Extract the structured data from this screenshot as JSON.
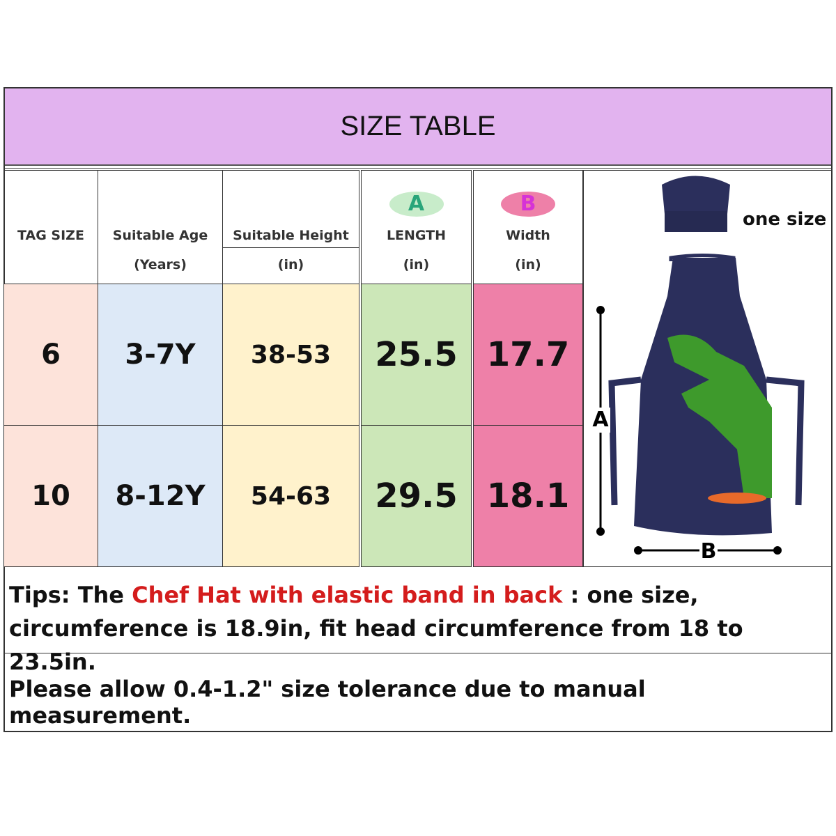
{
  "title": "SIZE TABLE",
  "table": {
    "headers": [
      {
        "label": "TAG SIZE"
      },
      {
        "label": "Suitable Age",
        "unit": "(Years)"
      },
      {
        "label": "Suitable Height",
        "unit": "(in)"
      },
      {
        "badge": "A",
        "label": "LENGTH",
        "unit": "(in)"
      },
      {
        "badge": "B",
        "label": "Width",
        "unit": "(in)"
      }
    ],
    "rows": [
      [
        "6",
        "3-7Y",
        "38-53",
        "25.5",
        "17.7"
      ],
      [
        "10",
        "8-12Y",
        "54-63",
        "29.5",
        "18.1"
      ]
    ]
  },
  "illustration": {
    "hat_label": "one size",
    "length_label": "A",
    "width_label": "B"
  },
  "tips": {
    "prefix": "Tips: The ",
    "highlight": "Chef Hat with elastic band in back",
    "suffix": " : one size, circumference is 18.9in, fit head circumference from 18 to 23.5in."
  },
  "note": "Please allow 0.4-1.2\" size tolerance due to manual measurement."
}
